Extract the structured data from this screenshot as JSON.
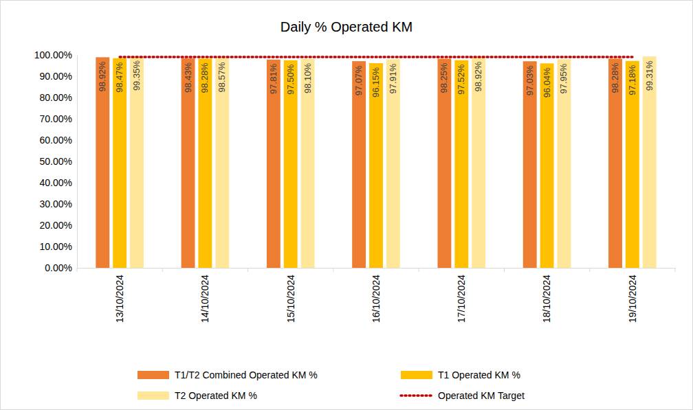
{
  "chart_data": {
    "type": "bar",
    "title": "Daily % Operated KM",
    "categories": [
      "13/10/2024",
      "14/10/2024",
      "15/10/2024",
      "16/10/2024",
      "17/10/2024",
      "18/10/2024",
      "19/10/2024"
    ],
    "series": [
      {
        "name": "T1/T2 Combined Operated KM %",
        "color": "#ed7d31",
        "values": [
          98.92,
          98.43,
          97.81,
          97.07,
          98.25,
          97.03,
          98.28
        ],
        "value_labels": [
          "98.92%",
          "98.43%",
          "97.81%",
          "97.07%",
          "98.25%",
          "97.03%",
          "98.28%"
        ]
      },
      {
        "name": "T1 Operated KM %",
        "color": "#ffc000",
        "values": [
          98.47,
          98.28,
          97.5,
          96.15,
          97.52,
          96.04,
          97.18
        ],
        "value_labels": [
          "98.47%",
          "98.28%",
          "97.50%",
          "96.15%",
          "97.52%",
          "96.04%",
          "97.18%"
        ]
      },
      {
        "name": "T2 Operated KM %",
        "color": "#ffe699",
        "values": [
          99.35,
          98.57,
          98.1,
          97.91,
          98.92,
          97.95,
          99.31
        ],
        "value_labels": [
          "99.35%",
          "98.57%",
          "98.10%",
          "97.91%",
          "98.92%",
          "97.95%",
          "99.31%"
        ]
      },
      {
        "name": "Operated KM Target",
        "type": "line",
        "color": "#c00000",
        "line_style": "dotted",
        "values": [
          99,
          99,
          99,
          99,
          99,
          99,
          99
        ]
      }
    ],
    "ylim": [
      0,
      100
    ],
    "yticks": [
      {
        "value": 0,
        "label": "0.00%"
      },
      {
        "value": 10,
        "label": "10.00%"
      },
      {
        "value": 20,
        "label": "20.00%"
      },
      {
        "value": 30,
        "label": "30.00%"
      },
      {
        "value": 40,
        "label": "40.00%"
      },
      {
        "value": 50,
        "label": "50.00%"
      },
      {
        "value": 60,
        "label": "60.00%"
      },
      {
        "value": 70,
        "label": "70.00%"
      },
      {
        "value": 80,
        "label": "80.00%"
      },
      {
        "value": 90,
        "label": "90.00%"
      },
      {
        "value": 100,
        "label": "100.00%"
      }
    ],
    "grid": false,
    "legend": "bottom",
    "data_labels": true
  }
}
